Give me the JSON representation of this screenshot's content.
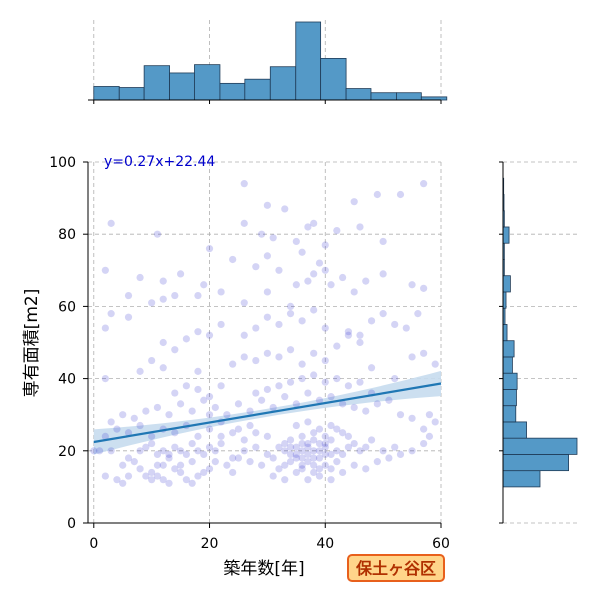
{
  "chart_data": {
    "type": "scatter",
    "title": "",
    "xlabel": "築年数[年]",
    "ylabel": "専有面積[m2]",
    "xlim": [
      -1,
      60
    ],
    "ylim": [
      0,
      100
    ],
    "x_ticks": [
      "0",
      "20",
      "40",
      "60"
    ],
    "y_ticks": [
      "0",
      "20",
      "40",
      "60",
      "80",
      "100"
    ],
    "grid": true,
    "annotation": "y=0.27x+22.44",
    "badge": "保土ヶ谷区",
    "regression": {
      "slope": 0.27,
      "intercept": 22.44,
      "x_range": [
        0,
        60
      ]
    },
    "colors": {
      "points": "#3a3ad0",
      "line": "#1f77b4",
      "ci_band": "#c6dcee",
      "hist": "#5499c7",
      "annotation": "#0000cc",
      "badge_bg": "#ffd58a",
      "badge_border": "#e8601c",
      "badge_text": "#b03000"
    },
    "top_histogram": {
      "bin_edges": [
        0,
        4.4,
        8.7,
        13.1,
        17.4,
        21.8,
        26.1,
        30.5,
        34.9,
        39.2,
        43.6,
        47.9,
        52.3,
        56.6,
        61
      ],
      "counts": [
        13,
        12,
        33,
        26,
        34,
        16,
        20,
        32,
        75,
        40,
        11,
        7,
        7,
        3
      ]
    },
    "right_histogram": {
      "bin_edges": [
        10,
        14.5,
        19,
        23.5,
        28,
        32.5,
        37,
        41.5,
        46,
        50.5,
        55,
        59.5,
        64,
        68.5,
        73,
        77.5,
        82,
        86.5,
        91,
        95.5
      ],
      "counts": [
        110,
        195,
        220,
        70,
        38,
        40,
        42,
        28,
        33,
        12,
        6,
        9,
        22,
        4,
        4,
        18,
        4,
        3,
        2
      ]
    },
    "points": [
      [
        2,
        13
      ],
      [
        3,
        20
      ],
      [
        4,
        12
      ],
      [
        5,
        11
      ],
      [
        6,
        13
      ],
      [
        8,
        15
      ],
      [
        9,
        13
      ],
      [
        10,
        12
      ],
      [
        10,
        14
      ],
      [
        11,
        13
      ],
      [
        12,
        12
      ],
      [
        12,
        16
      ],
      [
        13,
        11
      ],
      [
        14,
        15
      ],
      [
        15,
        14
      ],
      [
        16,
        12
      ],
      [
        17,
        11
      ],
      [
        18,
        13
      ],
      [
        8,
        20
      ],
      [
        9,
        21
      ],
      [
        10,
        22
      ],
      [
        11,
        19
      ],
      [
        12,
        20
      ],
      [
        13,
        18
      ],
      [
        14,
        21
      ],
      [
        15,
        20
      ],
      [
        16,
        19
      ],
      [
        17,
        22
      ],
      [
        18,
        20
      ],
      [
        19,
        19
      ],
      [
        20,
        21
      ],
      [
        21,
        20
      ],
      [
        22,
        22
      ],
      [
        24,
        18
      ],
      [
        26,
        20
      ],
      [
        28,
        21
      ],
      [
        30,
        19
      ],
      [
        31,
        18
      ],
      [
        32,
        21
      ],
      [
        33,
        22
      ],
      [
        34,
        17
      ],
      [
        35,
        19
      ],
      [
        36,
        20
      ],
      [
        37,
        21
      ],
      [
        38,
        18
      ],
      [
        39,
        22
      ],
      [
        40,
        19
      ],
      [
        41,
        23
      ],
      [
        42,
        20
      ],
      [
        43,
        19
      ],
      [
        44,
        21
      ],
      [
        35,
        14
      ],
      [
        36,
        15
      ],
      [
        37,
        17
      ],
      [
        38,
        14
      ],
      [
        39,
        15
      ],
      [
        40,
        16
      ],
      [
        41,
        15
      ],
      [
        42,
        17
      ],
      [
        36,
        16
      ],
      [
        38,
        16
      ],
      [
        33,
        16
      ],
      [
        32,
        15
      ],
      [
        34,
        23
      ],
      [
        36,
        24
      ],
      [
        38,
        25
      ],
      [
        40,
        24
      ],
      [
        42,
        26
      ],
      [
        35,
        27
      ],
      [
        37,
        28
      ],
      [
        39,
        26
      ],
      [
        41,
        27
      ],
      [
        43,
        25
      ],
      [
        44,
        24
      ],
      [
        45,
        22
      ],
      [
        46,
        20
      ],
      [
        47,
        21
      ],
      [
        48,
        23
      ],
      [
        50,
        20
      ],
      [
        52,
        21
      ],
      [
        30,
        24
      ],
      [
        28,
        25
      ],
      [
        27,
        27
      ],
      [
        26,
        23
      ],
      [
        25,
        26
      ],
      [
        24,
        25
      ],
      [
        22,
        24
      ],
      [
        20,
        26
      ],
      [
        18,
        24
      ],
      [
        16,
        27
      ],
      [
        14,
        25
      ],
      [
        12,
        26
      ],
      [
        10,
        24
      ],
      [
        8,
        27
      ],
      [
        6,
        25
      ],
      [
        4,
        26
      ],
      [
        2,
        24
      ],
      [
        1,
        20
      ],
      [
        0,
        20
      ],
      [
        3,
        28
      ],
      [
        5,
        30
      ],
      [
        7,
        29
      ],
      [
        9,
        31
      ],
      [
        11,
        32
      ],
      [
        13,
        30
      ],
      [
        15,
        33
      ],
      [
        17,
        31
      ],
      [
        19,
        34
      ],
      [
        21,
        32
      ],
      [
        23,
        30
      ],
      [
        25,
        33
      ],
      [
        27,
        31
      ],
      [
        29,
        34
      ],
      [
        31,
        32
      ],
      [
        33,
        35
      ],
      [
        35,
        33
      ],
      [
        37,
        36
      ],
      [
        39,
        34
      ],
      [
        41,
        35
      ],
      [
        43,
        33
      ],
      [
        45,
        32
      ],
      [
        47,
        31
      ],
      [
        49,
        33
      ],
      [
        51,
        34
      ],
      [
        53,
        30
      ],
      [
        55,
        29
      ],
      [
        57,
        26
      ],
      [
        59,
        28
      ],
      [
        58,
        30
      ],
      [
        14,
        36
      ],
      [
        16,
        38
      ],
      [
        18,
        37
      ],
      [
        20,
        35
      ],
      [
        22,
        38
      ],
      [
        28,
        36
      ],
      [
        30,
        37
      ],
      [
        32,
        38
      ],
      [
        34,
        39
      ],
      [
        36,
        40
      ],
      [
        38,
        41
      ],
      [
        40,
        39
      ],
      [
        42,
        40
      ],
      [
        44,
        38
      ],
      [
        46,
        39
      ],
      [
        48,
        36
      ],
      [
        2,
        40
      ],
      [
        8,
        42
      ],
      [
        10,
        45
      ],
      [
        12,
        43
      ],
      [
        24,
        44
      ],
      [
        26,
        46
      ],
      [
        28,
        45
      ],
      [
        30,
        47
      ],
      [
        32,
        46
      ],
      [
        34,
        48
      ],
      [
        36,
        44
      ],
      [
        38,
        47
      ],
      [
        40,
        45
      ],
      [
        42,
        49
      ],
      [
        44,
        52
      ],
      [
        46,
        50
      ],
      [
        48,
        43
      ],
      [
        55,
        46
      ],
      [
        57,
        47
      ],
      [
        59,
        44
      ],
      [
        12,
        50
      ],
      [
        14,
        48
      ],
      [
        16,
        51
      ],
      [
        18,
        53
      ],
      [
        20,
        52
      ],
      [
        22,
        55
      ],
      [
        26,
        52
      ],
      [
        28,
        54
      ],
      [
        30,
        57
      ],
      [
        32,
        55
      ],
      [
        34,
        58
      ],
      [
        36,
        56
      ],
      [
        38,
        59
      ],
      [
        40,
        54
      ],
      [
        44,
        53
      ],
      [
        48,
        56
      ],
      [
        50,
        58
      ],
      [
        52,
        55
      ],
      [
        54,
        54
      ],
      [
        56,
        58
      ],
      [
        2,
        54
      ],
      [
        3,
        58
      ],
      [
        6,
        57
      ],
      [
        6,
        63
      ],
      [
        10,
        61
      ],
      [
        12,
        62
      ],
      [
        14,
        63
      ],
      [
        18,
        63
      ],
      [
        22,
        64
      ],
      [
        26,
        61
      ],
      [
        30,
        64
      ],
      [
        34,
        60
      ],
      [
        35,
        66
      ],
      [
        37,
        67
      ],
      [
        38,
        69
      ],
      [
        40,
        70
      ],
      [
        39,
        72
      ],
      [
        41,
        66
      ],
      [
        43,
        68
      ],
      [
        45,
        64
      ],
      [
        47,
        67
      ],
      [
        50,
        69
      ],
      [
        55,
        66
      ],
      [
        57,
        65
      ],
      [
        2,
        70
      ],
      [
        8,
        68
      ],
      [
        12,
        67
      ],
      [
        15,
        69
      ],
      [
        19,
        66
      ],
      [
        20,
        76
      ],
      [
        24,
        73
      ],
      [
        28,
        71
      ],
      [
        30,
        74
      ],
      [
        32,
        70
      ],
      [
        35,
        78
      ],
      [
        37,
        82
      ],
      [
        38,
        83
      ],
      [
        40,
        77
      ],
      [
        42,
        81
      ],
      [
        46,
        82
      ],
      [
        50,
        78
      ],
      [
        11,
        80
      ],
      [
        26,
        83
      ],
      [
        29,
        80
      ],
      [
        31,
        79
      ],
      [
        36,
        75
      ],
      [
        30,
        88
      ],
      [
        33,
        87
      ],
      [
        45,
        89
      ],
      [
        49,
        91
      ],
      [
        53,
        91
      ],
      [
        26,
        94
      ],
      [
        57,
        94
      ],
      [
        3,
        83
      ],
      [
        46,
        52
      ],
      [
        52,
        40
      ],
      [
        18,
        42
      ],
      [
        20,
        30
      ],
      [
        22,
        28
      ],
      [
        24,
        14
      ],
      [
        27,
        17
      ],
      [
        29,
        16
      ],
      [
        31,
        13
      ],
      [
        33,
        12
      ],
      [
        37,
        12
      ],
      [
        39,
        13
      ],
      [
        41,
        12
      ],
      [
        43,
        14
      ],
      [
        45,
        16
      ],
      [
        47,
        15
      ],
      [
        49,
        17
      ],
      [
        51,
        18
      ],
      [
        53,
        19
      ],
      [
        55,
        20
      ],
      [
        57,
        22
      ],
      [
        58,
        24
      ],
      [
        20,
        15
      ],
      [
        21,
        17
      ],
      [
        23,
        16
      ],
      [
        25,
        18
      ],
      [
        19,
        14
      ],
      [
        17,
        17
      ],
      [
        15,
        16
      ],
      [
        13,
        19
      ],
      [
        11,
        16
      ],
      [
        7,
        17
      ],
      [
        6,
        18
      ],
      [
        5,
        16
      ],
      [
        34,
        19
      ],
      [
        35,
        21
      ],
      [
        36,
        22
      ],
      [
        37,
        19
      ],
      [
        38,
        20
      ],
      [
        39,
        18
      ],
      [
        40,
        21
      ],
      [
        41,
        19
      ],
      [
        33,
        20
      ],
      [
        34,
        21
      ],
      [
        35,
        18
      ],
      [
        36,
        18
      ],
      [
        37,
        22
      ],
      [
        38,
        23
      ],
      [
        39,
        20
      ],
      [
        40,
        22
      ]
    ]
  }
}
